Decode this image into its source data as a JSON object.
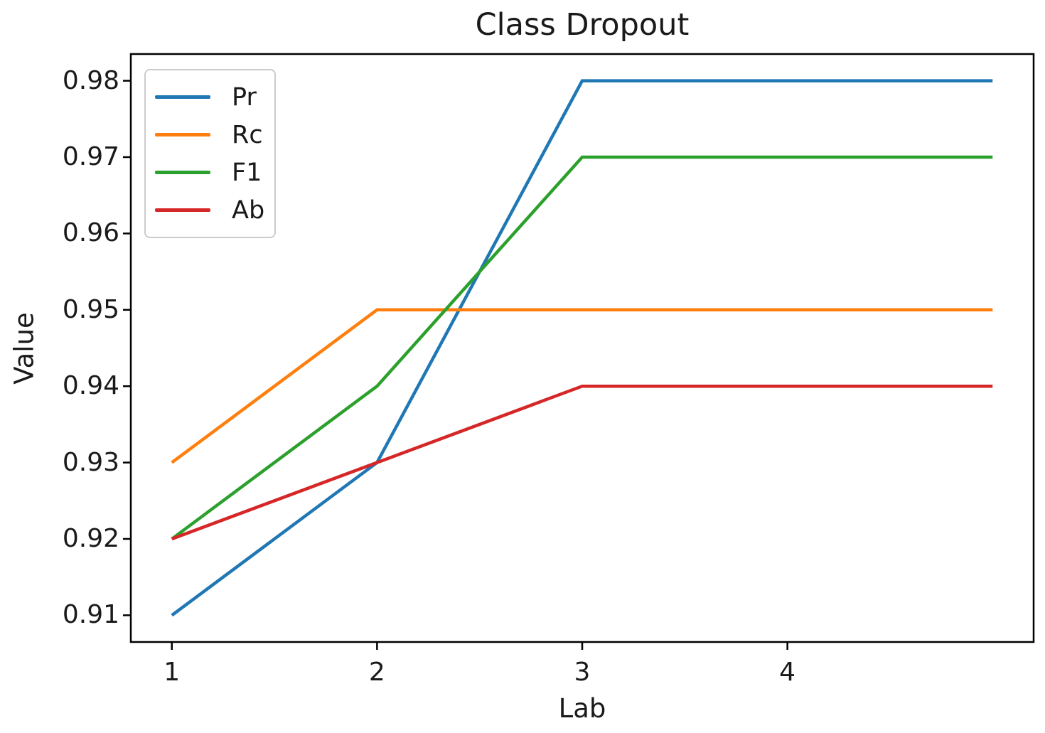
{
  "chart_data": {
    "type": "line",
    "title": "Class Dropout",
    "xlabel": "Lab",
    "ylabel": "Value",
    "x": [
      1,
      2,
      3,
      4,
      5
    ],
    "series": [
      {
        "name": "Pr",
        "color": "#1f77b4",
        "values": [
          0.91,
          0.93,
          0.98,
          0.98,
          0.98
        ]
      },
      {
        "name": "Rc",
        "color": "#ff7f0e",
        "values": [
          0.93,
          0.95,
          0.95,
          0.95,
          0.95
        ]
      },
      {
        "name": "F1",
        "color": "#2ca02c",
        "values": [
          0.92,
          0.94,
          0.97,
          0.97,
          0.97
        ]
      },
      {
        "name": "Ab",
        "color": "#d62728",
        "values": [
          0.92,
          0.93,
          0.94,
          0.94,
          0.94
        ]
      }
    ],
    "xlim": [
      0.8,
      5.2
    ],
    "ylim": [
      0.9065,
      0.9835
    ],
    "xticks": [
      1,
      2,
      3,
      4
    ],
    "xtick_labels": [
      "1",
      "2",
      "3",
      "4"
    ],
    "yticks": [
      0.91,
      0.92,
      0.93,
      0.94,
      0.95,
      0.96,
      0.97,
      0.98
    ],
    "ytick_labels": [
      "0.91",
      "0.92",
      "0.93",
      "0.94",
      "0.95",
      "0.96",
      "0.97",
      "0.98"
    ],
    "grid": false,
    "legend_position": "upper left",
    "axis_color": "#000000",
    "background": "#ffffff"
  }
}
